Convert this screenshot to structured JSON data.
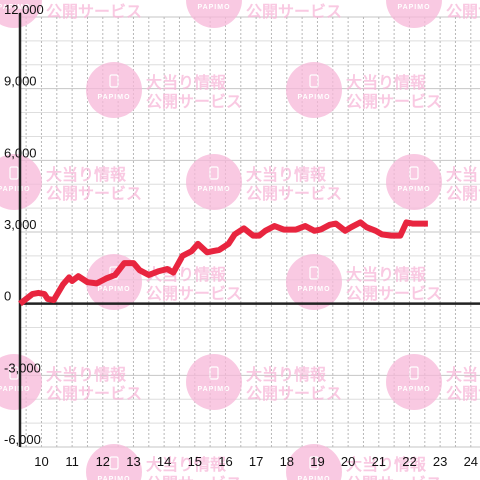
{
  "chart_data": {
    "type": "line",
    "title": "",
    "xlabel": "",
    "ylabel": "",
    "xlim": [
      9.3,
      24.3
    ],
    "ylim": [
      -6000,
      12000
    ],
    "y_ticks": [
      12000,
      9000,
      6000,
      3000,
      0,
      -3000,
      -6000
    ],
    "y_tick_labels": [
      "12,000",
      "9,000",
      "6,000",
      "3,000",
      "0",
      "-3,000",
      "-6,000"
    ],
    "x_ticks": [
      10,
      11,
      12,
      13,
      14,
      15,
      16,
      17,
      18,
      19,
      20,
      21,
      22,
      23,
      24
    ],
    "x_tick_labels": [
      "10",
      "11",
      "12",
      "13",
      "14",
      "15",
      "16",
      "17",
      "18",
      "19",
      "20",
      "21",
      "22",
      "23",
      "24"
    ],
    "grid": true,
    "legend": "none",
    "series": [
      {
        "color": "#e8253f",
        "x": [
          9.3,
          9.7,
          9.9,
          10.1,
          10.2,
          10.4,
          10.7,
          10.9,
          11.0,
          11.2,
          11.5,
          11.8,
          12.1,
          12.4,
          12.7,
          13.0,
          13.2,
          13.5,
          13.8,
          14.1,
          14.3,
          14.6,
          14.9,
          15.1,
          15.4,
          15.6,
          15.8,
          16.1,
          16.3,
          16.6,
          16.9,
          17.1,
          17.3,
          17.6,
          17.9,
          18.1,
          18.3,
          18.6,
          18.9,
          19.1,
          19.4,
          19.6,
          19.9,
          20.1,
          20.4,
          20.6,
          20.9,
          21.1,
          21.4,
          21.7,
          21.9,
          22.1,
          22.4,
          22.6
        ],
        "y": [
          0,
          400,
          450,
          400,
          200,
          150,
          800,
          1100,
          950,
          1150,
          900,
          850,
          1050,
          1200,
          1700,
          1700,
          1400,
          1200,
          1350,
          1450,
          1300,
          2000,
          2200,
          2500,
          2150,
          2200,
          2250,
          2500,
          2900,
          3150,
          2850,
          2850,
          3050,
          3250,
          3100,
          3100,
          3100,
          3250,
          3050,
          3100,
          3300,
          3350,
          3050,
          3200,
          3400,
          3200,
          3050,
          2900,
          2850,
          2850,
          3400,
          3350,
          3350,
          3350
        ]
      }
    ]
  },
  "watermark": {
    "text_line1": "大当り情報",
    "text_line2": "公開サービス",
    "brand": "PAPIMO",
    "color": "#f7b8d9"
  }
}
